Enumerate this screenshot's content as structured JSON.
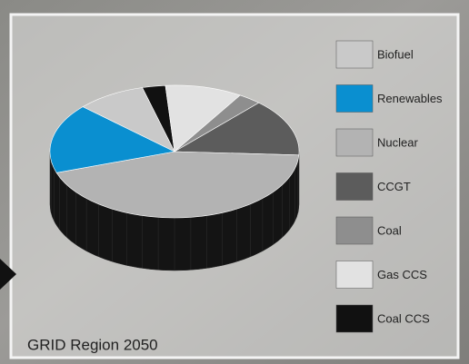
{
  "chart_data": {
    "type": "pie",
    "title": "GRID Region 2050",
    "categories": [
      "Coal CCS",
      "Gas CCS",
      "Coal",
      "CCGT",
      "Nuclear",
      "Renewables",
      "Biofuel"
    ],
    "values": [
      3,
      10,
      3,
      14,
      44,
      17,
      9
    ],
    "colors": [
      "#111111",
      "#e2e2e2",
      "#8e8e8e",
      "#5c5c5c",
      "#b3b3b3",
      "#0a8fd0",
      "#c9c9c9"
    ],
    "legend_order": [
      6,
      5,
      4,
      3,
      2,
      1,
      0
    ]
  }
}
